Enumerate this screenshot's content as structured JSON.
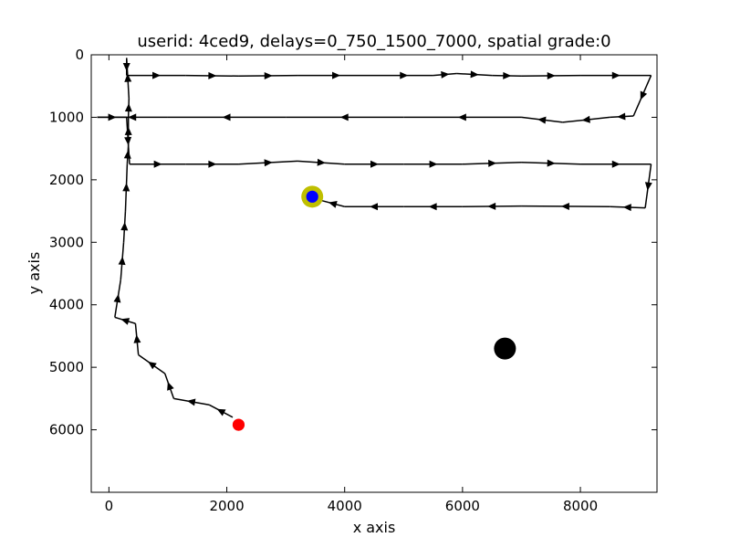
{
  "chart_data": {
    "type": "line",
    "title": "userid: 4ced9, delays=0_750_1500_7000, spatial grade:0",
    "xlabel": "x axis",
    "ylabel": "y axis",
    "xlim": [
      -300,
      9300
    ],
    "ylim": [
      0,
      7000
    ],
    "y_inverted": true,
    "x_ticks": [
      "0",
      "2000",
      "4000",
      "6000",
      "8000"
    ],
    "y_ticks": [
      "0",
      "1000",
      "2000",
      "3000",
      "4000",
      "5000",
      "6000"
    ],
    "grid": false,
    "legend": "none",
    "path": [
      [
        2100,
        5800
      ],
      [
        1700,
        5600
      ],
      [
        1100,
        5500
      ],
      [
        950,
        5100
      ],
      [
        500,
        4800
      ],
      [
        450,
        4300
      ],
      [
        100,
        4200
      ],
      [
        200,
        3600
      ],
      [
        250,
        3000
      ],
      [
        280,
        2500
      ],
      [
        310,
        1750
      ],
      [
        330,
        1450
      ],
      [
        330,
        1000
      ],
      [
        340,
        700
      ],
      [
        300,
        50
      ],
      [
        300,
        330
      ],
      [
        1300,
        330
      ],
      [
        2200,
        340
      ],
      [
        3200,
        330
      ],
      [
        4500,
        330
      ],
      [
        5500,
        330
      ],
      [
        5900,
        300
      ],
      [
        6500,
        330
      ],
      [
        7000,
        340
      ],
      [
        8000,
        330
      ],
      [
        9200,
        330
      ],
      [
        8900,
        980
      ],
      [
        8500,
        1000
      ],
      [
        7700,
        1080
      ],
      [
        7000,
        1000
      ],
      [
        5000,
        1000
      ],
      [
        3000,
        1000
      ],
      [
        1000,
        1000
      ],
      [
        -200,
        1000
      ],
      [
        300,
        1000
      ],
      [
        350,
        1750
      ],
      [
        1300,
        1750
      ],
      [
        2200,
        1750
      ],
      [
        3200,
        1700
      ],
      [
        4000,
        1750
      ],
      [
        5000,
        1750
      ],
      [
        6000,
        1750
      ],
      [
        7000,
        1720
      ],
      [
        8000,
        1750
      ],
      [
        9200,
        1750
      ],
      [
        9100,
        2450
      ],
      [
        8500,
        2430
      ],
      [
        7000,
        2420
      ],
      [
        6000,
        2430
      ],
      [
        5000,
        2430
      ],
      [
        4000,
        2430
      ],
      [
        3600,
        2330
      ]
    ],
    "arrow_every": 1,
    "markers": [
      {
        "name": "start-point",
        "x": 2200,
        "y": 5920,
        "color": "#ff0000",
        "size": 1
      },
      {
        "name": "target-outer",
        "x": 3450,
        "y": 2270,
        "color": "#bfbf00",
        "size": 2
      },
      {
        "name": "end-point",
        "x": 3450,
        "y": 2270,
        "color": "#0000ff",
        "size": 1
      },
      {
        "name": "black-circle",
        "x": 6720,
        "y": 4700,
        "color": "#000000",
        "size": 2
      }
    ],
    "colors": {
      "path": "#000000",
      "axis": "#000000"
    }
  }
}
